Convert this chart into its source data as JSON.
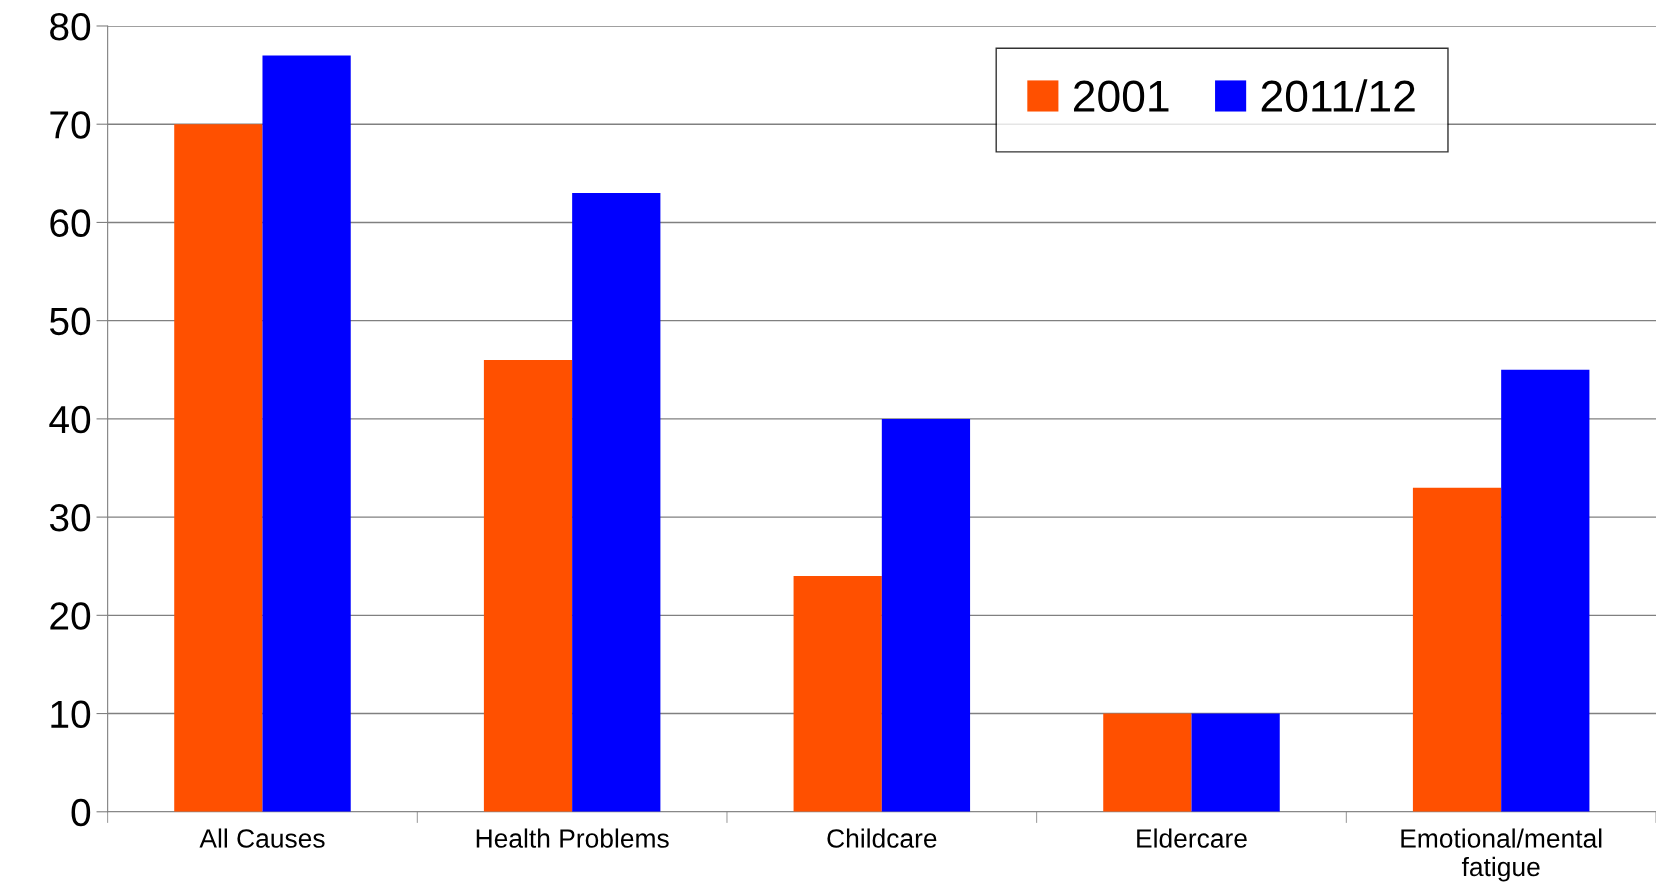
{
  "chart_data": {
    "type": "bar",
    "categories": [
      "All Causes",
      "Health Problems",
      "Childcare",
      "Eldercare",
      "Emotional/mental\nfatigue"
    ],
    "series": [
      {
        "name": "2001",
        "color": "#ff5000",
        "values": [
          70,
          46,
          24,
          10,
          33
        ]
      },
      {
        "name": "2011/12",
        "color": "#0000ff",
        "values": [
          77,
          63,
          40,
          10,
          45
        ]
      }
    ],
    "ylim": [
      0,
      80
    ],
    "yticks": [
      0,
      10,
      20,
      30,
      40,
      50,
      60,
      70,
      80
    ],
    "grid": "y",
    "legend": "top right"
  }
}
